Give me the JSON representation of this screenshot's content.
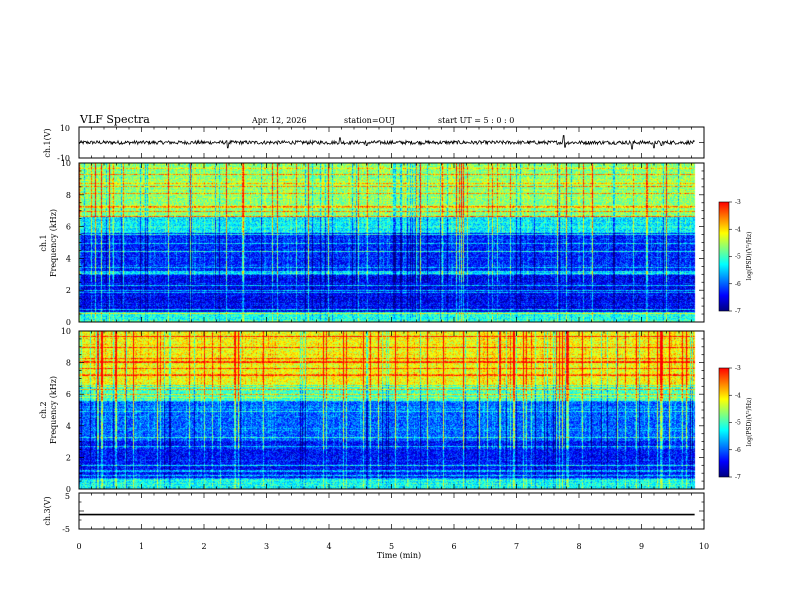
{
  "header": {
    "title": "VLF Spectra",
    "date": "Apr. 12, 2026",
    "station": "station=OUJ",
    "start_ut": "start  UT =  5 : 0  : 0"
  },
  "colors": {
    "colormap": [
      "#00007f",
      "#0000ff",
      "#0080ff",
      "#00ffff",
      "#80ff80",
      "#ffff00",
      "#ff8000",
      "#ff0000",
      "#ffffff"
    ],
    "trace": "#000000"
  },
  "chart_data": [
    {
      "type": "line",
      "id": "ch1-waveform",
      "ylabel": "ch.1(V)",
      "ylim": [
        -10,
        10
      ],
      "ytick_labels": [
        "10",
        "-10"
      ],
      "baseline": 0,
      "noise_amplitude": 1.2,
      "x_end_min": 9.85,
      "spikes": [
        {
          "t": 2.38,
          "v": -3.5
        },
        {
          "t": 4.18,
          "v": 3.0
        },
        {
          "t": 4.6,
          "v": -2.0
        },
        {
          "t": 7.75,
          "v": 4.5
        },
        {
          "t": 7.78,
          "v": -3.0
        },
        {
          "t": 8.85,
          "v": -4.2
        },
        {
          "t": 9.2,
          "v": -3.5
        },
        {
          "t": 9.32,
          "v": -2.0
        }
      ]
    },
    {
      "type": "heatmap",
      "id": "ch1-spectrogram",
      "ylabel": "ch.1\nFrequency (kHz)",
      "ylim": [
        0,
        10
      ],
      "ytick_labels": [
        "0",
        "2",
        "4",
        "6",
        "8",
        "10"
      ],
      "x_end_min": 9.85,
      "colorbar": {
        "label": "log(PSD)(V²/Hz)",
        "range": [
          -7,
          -3
        ],
        "tick_labels": [
          "-3",
          "-4",
          "-5",
          "-6",
          "-7"
        ]
      },
      "band_level_log_psd": [
        {
          "f_min": 0,
          "f_max": 0.6,
          "level": -5.2
        },
        {
          "f_min": 0.6,
          "f_max": 3.0,
          "level": -6.5
        },
        {
          "f_min": 3.0,
          "f_max": 5.6,
          "level": -6.3
        },
        {
          "f_min": 5.6,
          "f_max": 6.6,
          "level": -5.4
        },
        {
          "f_min": 6.6,
          "f_max": 10,
          "level": -4.7
        }
      ]
    },
    {
      "type": "heatmap",
      "id": "ch2-spectrogram",
      "ylabel": "ch.2\nFrequency (kHz)",
      "ylim": [
        0,
        10
      ],
      "ytick_labels": [
        "0",
        "2",
        "4",
        "6",
        "8",
        "10"
      ],
      "x_end_min": 9.85,
      "colorbar": {
        "label": "log(PSD)(V²/Hz)",
        "range": [
          -7,
          -3
        ],
        "tick_labels": [
          "-3",
          "-4",
          "-5",
          "-6",
          "-7"
        ]
      },
      "band_level_log_psd": [
        {
          "f_min": 0,
          "f_max": 0.6,
          "level": -5.3
        },
        {
          "f_min": 0.6,
          "f_max": 3.0,
          "level": -6.4
        },
        {
          "f_min": 3.0,
          "f_max": 5.6,
          "level": -6.0
        },
        {
          "f_min": 5.6,
          "f_max": 6.6,
          "level": -5.0
        },
        {
          "f_min": 6.6,
          "f_max": 10,
          "level": -4.2
        }
      ]
    },
    {
      "type": "line",
      "id": "ch3-waveform",
      "ylabel": "ch.3(V)",
      "ylim": [
        -5,
        5
      ],
      "ytick_labels": [
        "5",
        "-5"
      ],
      "baseline": -1.0,
      "noise_amplitude": 0.0,
      "x_end_min": 9.85
    }
  ],
  "x_axis": {
    "label": "Time  (min)",
    "range": [
      0,
      10
    ],
    "tick_labels": [
      "0",
      "1",
      "2",
      "3",
      "4",
      "5",
      "6",
      "7",
      "8",
      "9",
      "10"
    ]
  }
}
